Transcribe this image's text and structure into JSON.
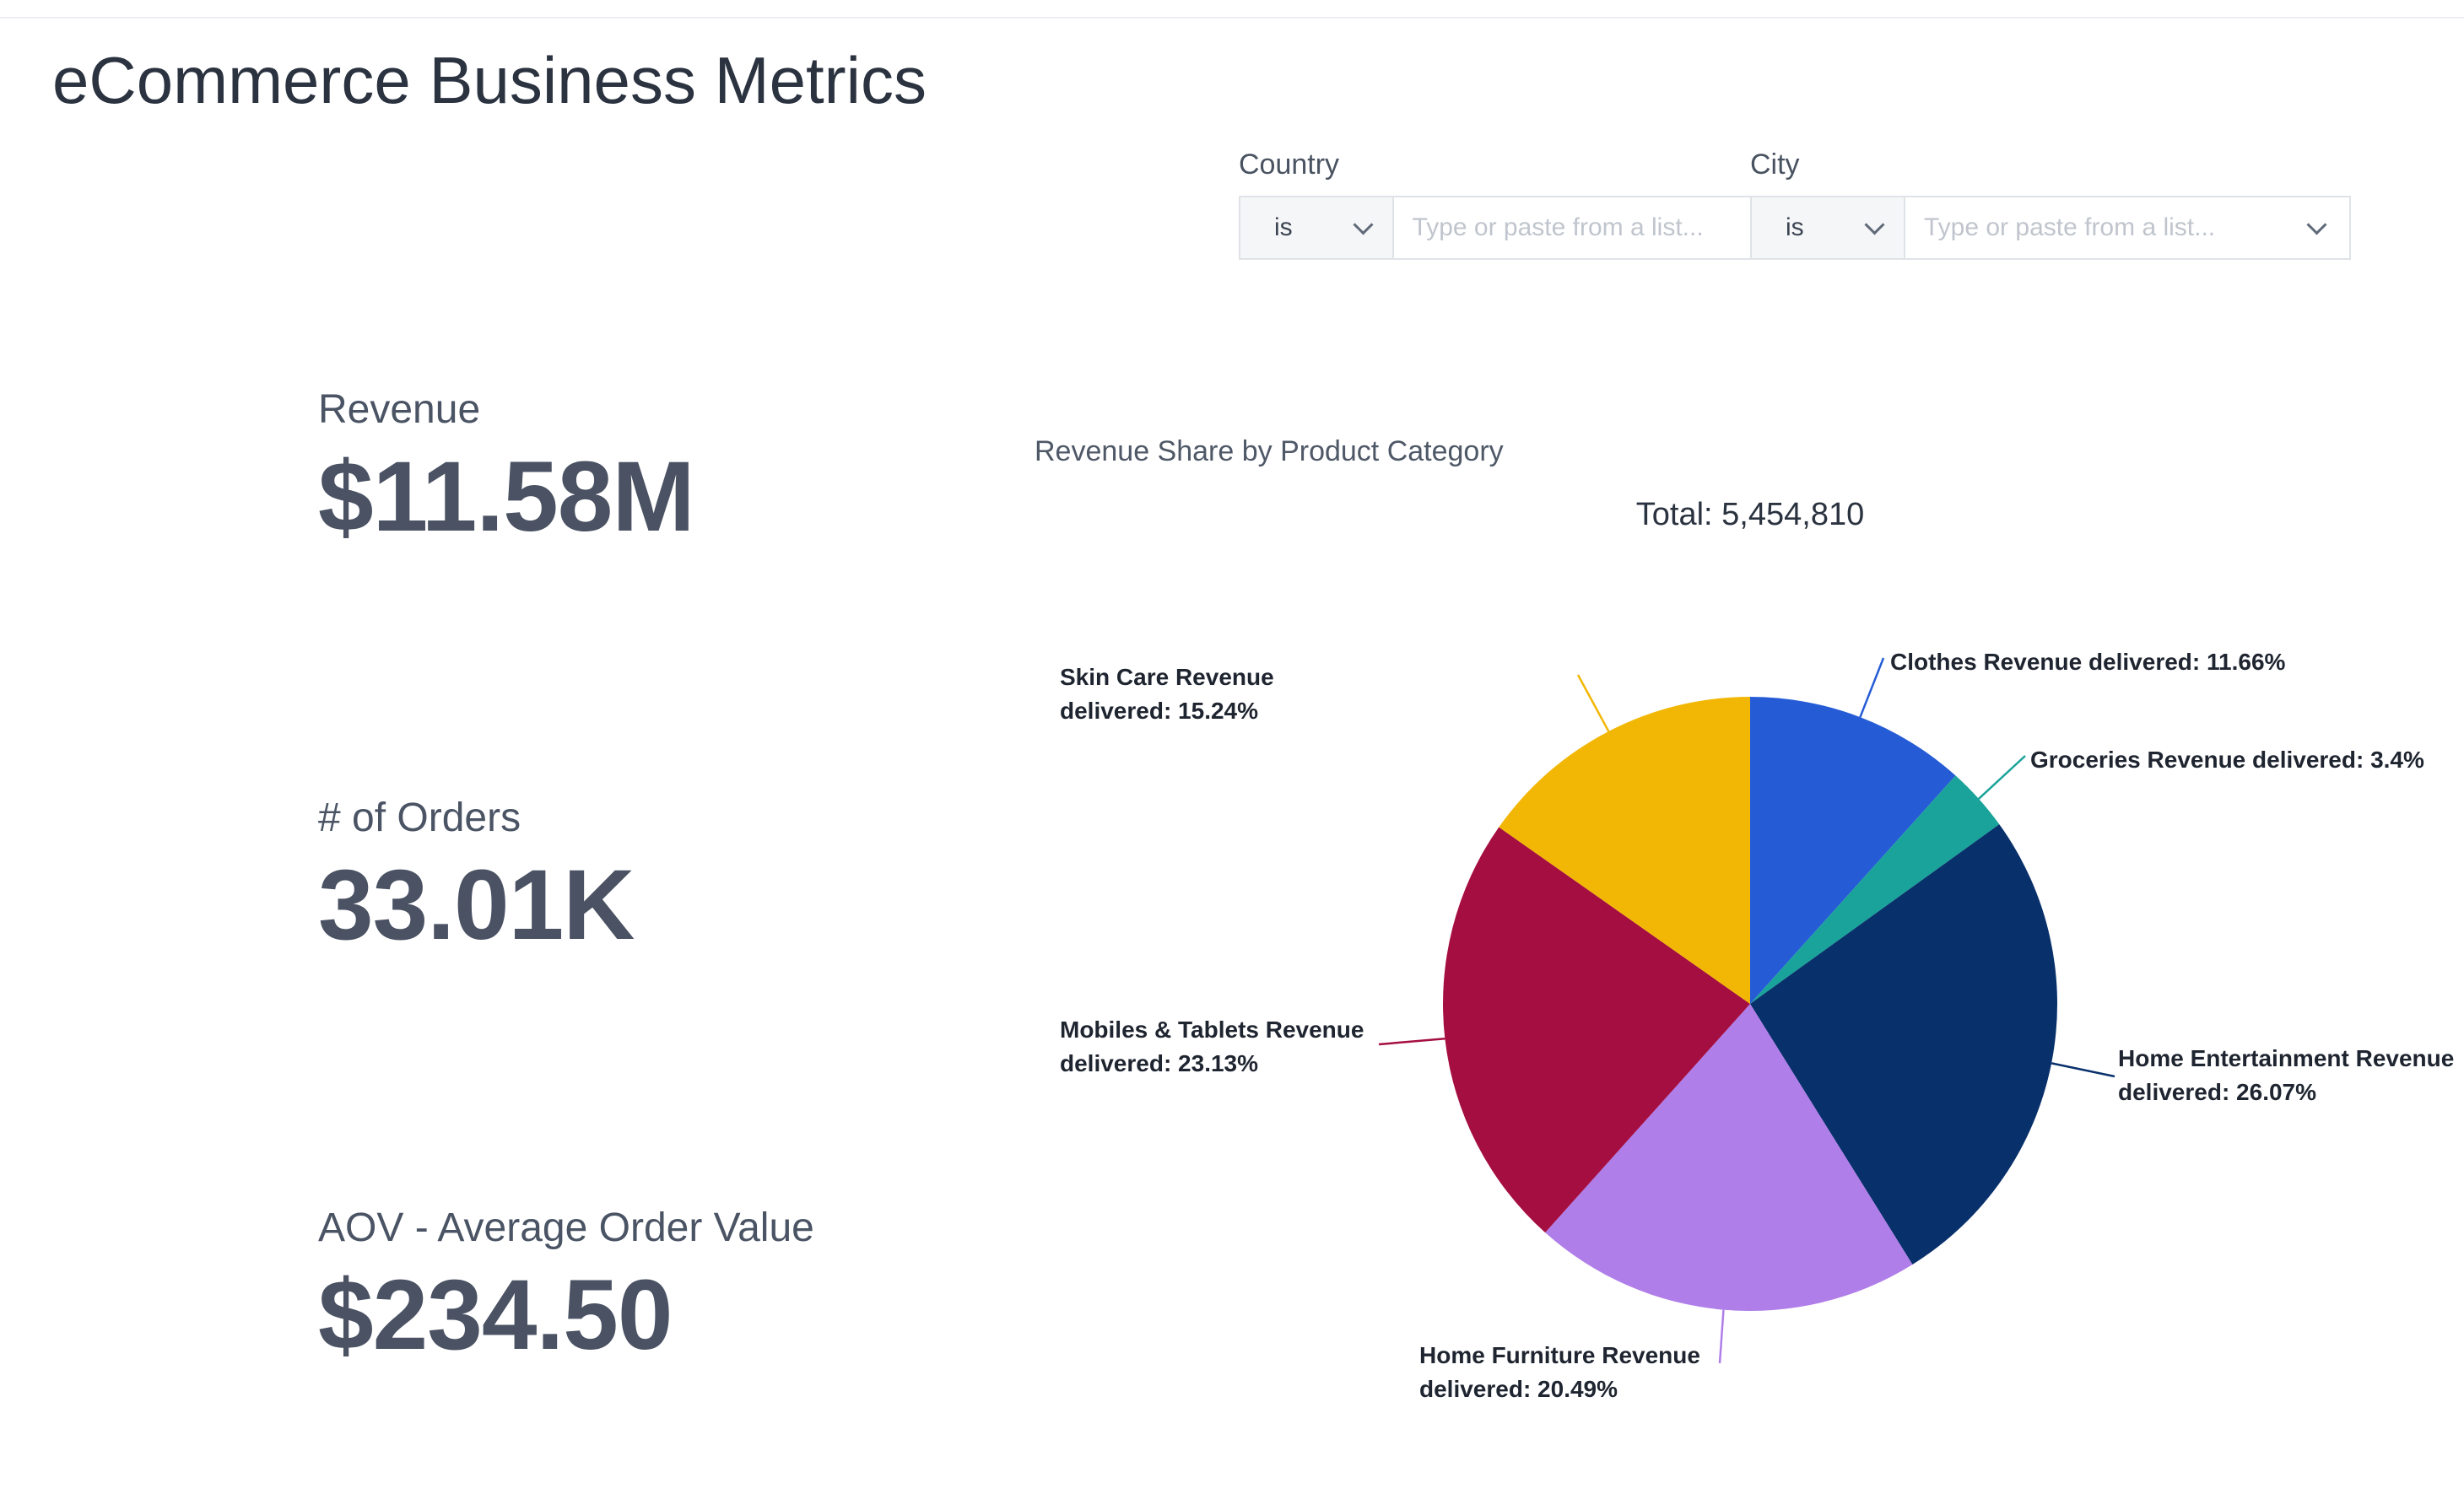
{
  "dashboard": {
    "title": "eCommerce Business Metrics"
  },
  "filters": [
    {
      "label": "Country",
      "operator": "is",
      "placeholder": "Type or paste from a list..."
    },
    {
      "label": "City",
      "operator": "is",
      "placeholder": "Type or paste from a list..."
    }
  ],
  "kpis": [
    {
      "label": "Revenue",
      "value": "$11.58M"
    },
    {
      "label": "# of Orders",
      "value": "33.01K"
    },
    {
      "label": "AOV - Average Order Value",
      "value": "$234.50"
    }
  ],
  "chart_data": {
    "type": "pie",
    "title": "Revenue Share by Product Category",
    "total_label": "Total: 5,454,810",
    "slices": [
      {
        "label": "Clothes Revenue delivered: 11.66%",
        "value": 11.66,
        "color": "#255cd6"
      },
      {
        "label": "Groceries Revenue delivered: 3.4%",
        "value": 3.4,
        "color": "#1aa39a"
      },
      {
        "label": "Home Entertainment Revenue delivered: 26.07%",
        "value": 26.07,
        "color": "#08306b"
      },
      {
        "label": "Home Furniture Revenue delivered: 20.49%",
        "value": 20.49,
        "color": "#b07ee9"
      },
      {
        "label": "Mobiles & Tablets Revenue delivered: 23.13%",
        "value": 23.13,
        "color": "#a50e40"
      },
      {
        "label": "Skin Care Revenue delivered: 15.24%",
        "value": 15.24,
        "color": "#f2b705"
      }
    ]
  }
}
